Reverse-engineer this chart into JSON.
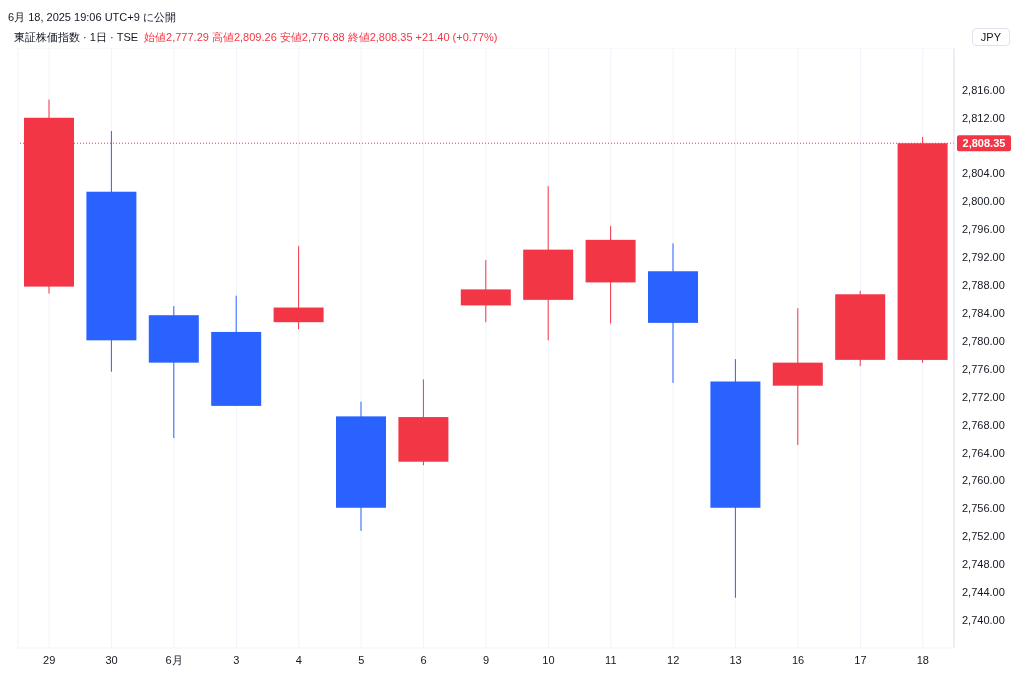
{
  "chart_data": {
    "type": "candlestick",
    "title": "東証株価指数 · 1日 · TSE",
    "subtitle": "6月 18, 2025 19:06 UTC+9 に公開",
    "annotations": [
      "始値2,777.29 高値2,809.26 安値2,776.88 終値2,808.35 +21.40 (+0.77%)",
      "JPY"
    ],
    "categories": [
      "29",
      "30",
      "6月",
      "3",
      "4",
      "5",
      "6",
      "9",
      "10",
      "11",
      "12",
      "13",
      "16",
      "17",
      "18"
    ],
    "ohlc": [
      [
        2787.8,
        2814.6,
        2786.8,
        2812.0
      ],
      [
        2801.4,
        2810.1,
        2775.6,
        2780.1
      ],
      [
        2783.7,
        2785.0,
        2766.1,
        2776.9
      ],
      [
        2781.3,
        2786.5,
        2770.7,
        2770.7
      ],
      [
        2782.7,
        2793.6,
        2781.7,
        2784.8
      ],
      [
        2769.2,
        2771.3,
        2752.8,
        2756.1
      ],
      [
        2762.7,
        2774.5,
        2762.2,
        2769.1
      ],
      [
        2785.1,
        2791.6,
        2782.7,
        2787.4
      ],
      [
        2785.9,
        2802.2,
        2780.1,
        2793.1
      ],
      [
        2788.4,
        2796.5,
        2782.5,
        2794.5
      ],
      [
        2790.0,
        2794.0,
        2774.0,
        2782.6
      ],
      [
        2774.2,
        2777.4,
        2743.2,
        2756.1
      ],
      [
        2773.6,
        2784.7,
        2765.1,
        2776.9
      ],
      [
        2777.3,
        2787.2,
        2776.4,
        2786.7
      ],
      [
        2777.29,
        2809.26,
        2776.88,
        2808.35
      ]
    ],
    "colors": [
      "#f23645",
      "#2962ff",
      "#2962ff",
      "#2962ff",
      "#f23645",
      "#2962ff",
      "#f23645",
      "#f23645",
      "#f23645",
      "#f23645",
      "#2962ff",
      "#2962ff",
      "#f23645",
      "#f23645",
      "#f23645"
    ],
    "ylim": [
      2736,
      2822
    ],
    "yticks": [
      {
        "value": 2740,
        "label": "2,740.00"
      },
      {
        "value": 2744,
        "label": "2,744.00"
      },
      {
        "value": 2748,
        "label": "2,748.00"
      },
      {
        "value": 2752,
        "label": "2,752.00"
      },
      {
        "value": 2756,
        "label": "2,756.00"
      },
      {
        "value": 2760,
        "label": "2,760.00"
      },
      {
        "value": 2764,
        "label": "2,764.00"
      },
      {
        "value": 2768,
        "label": "2,768.00"
      },
      {
        "value": 2772,
        "label": "2,772.00"
      },
      {
        "value": 2776,
        "label": "2,776.00"
      },
      {
        "value": 2780,
        "label": "2,780.00"
      },
      {
        "value": 2784,
        "label": "2,784.00"
      },
      {
        "value": 2788,
        "label": "2,788.00"
      },
      {
        "value": 2792,
        "label": "2,792.00"
      },
      {
        "value": 2796,
        "label": "2,796.00"
      },
      {
        "value": 2800,
        "label": "2,800.00"
      },
      {
        "value": 2804,
        "label": "2,804.00"
      },
      {
        "value": 2812,
        "label": "2,812.00"
      },
      {
        "value": 2816,
        "label": "2,816.00"
      }
    ],
    "ref_lines": [
      {
        "axis": "y",
        "value": 2808.35,
        "label": "2,808.35",
        "color": "#f23645",
        "line_style": "dotted"
      }
    ],
    "grid": true
  }
}
